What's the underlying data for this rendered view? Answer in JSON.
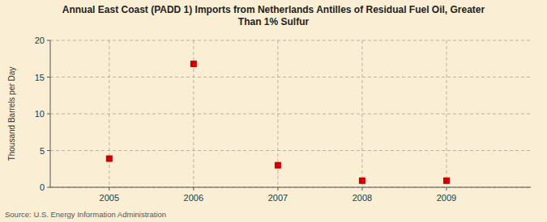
{
  "chart_data": {
    "type": "scatter",
    "title": "Annual East Coast (PADD 1) Imports from Netherlands Antilles of Residual Fuel Oil, Greater\nThan 1% Sulfur",
    "ylabel": "Thousand Barrels per Day",
    "annotation": "Source: U.S. Energy Information Administration",
    "x": [
      2005,
      2006,
      2007,
      2008,
      2009
    ],
    "values": [
      3.9,
      16.8,
      3.0,
      0.9,
      0.9
    ],
    "xlim": [
      2004.3,
      2010.0
    ],
    "ylim": [
      0,
      20
    ],
    "xticks": [
      2005,
      2006,
      2007,
      2008,
      2009
    ],
    "yticks": [
      0,
      5,
      10,
      15,
      20
    ],
    "color": "#cc0000",
    "marker": "square",
    "grid": true
  }
}
